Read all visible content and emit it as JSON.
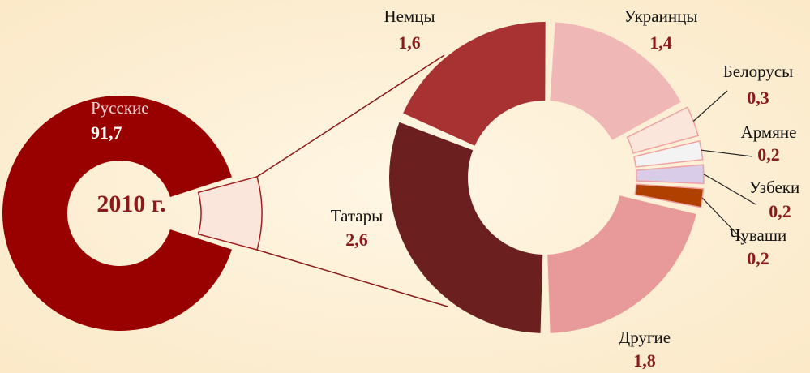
{
  "chart_data": [
    {
      "type": "donut",
      "center_label": "2010 г.",
      "categories": [
        "Русские",
        null
      ],
      "values": [
        91.7,
        8.3
      ],
      "value_labels": [
        "91,7",
        null
      ],
      "colors": [
        "#990000",
        "#fbe6dc"
      ]
    },
    {
      "type": "donut",
      "categories": [
        "Украинцы",
        "Белорусы",
        "Армяне",
        "Узбеки",
        "Чуваши",
        "Другие",
        "Татары",
        "Немцы"
      ],
      "values": [
        1.4,
        0.3,
        0.2,
        0.2,
        0.2,
        1.8,
        2.6,
        1.6
      ],
      "value_labels": [
        "1,4",
        "0,3",
        "0,2",
        "0,2",
        "0,2",
        "1,8",
        "2,6",
        "1,6"
      ],
      "colors": [
        "#f0b7b7",
        "#fbe6dc",
        "#f3f3f3",
        "#d8cce8",
        "#b04000",
        "#e89a9a",
        "#6b1f1f",
        "#a83232"
      ]
    }
  ]
}
